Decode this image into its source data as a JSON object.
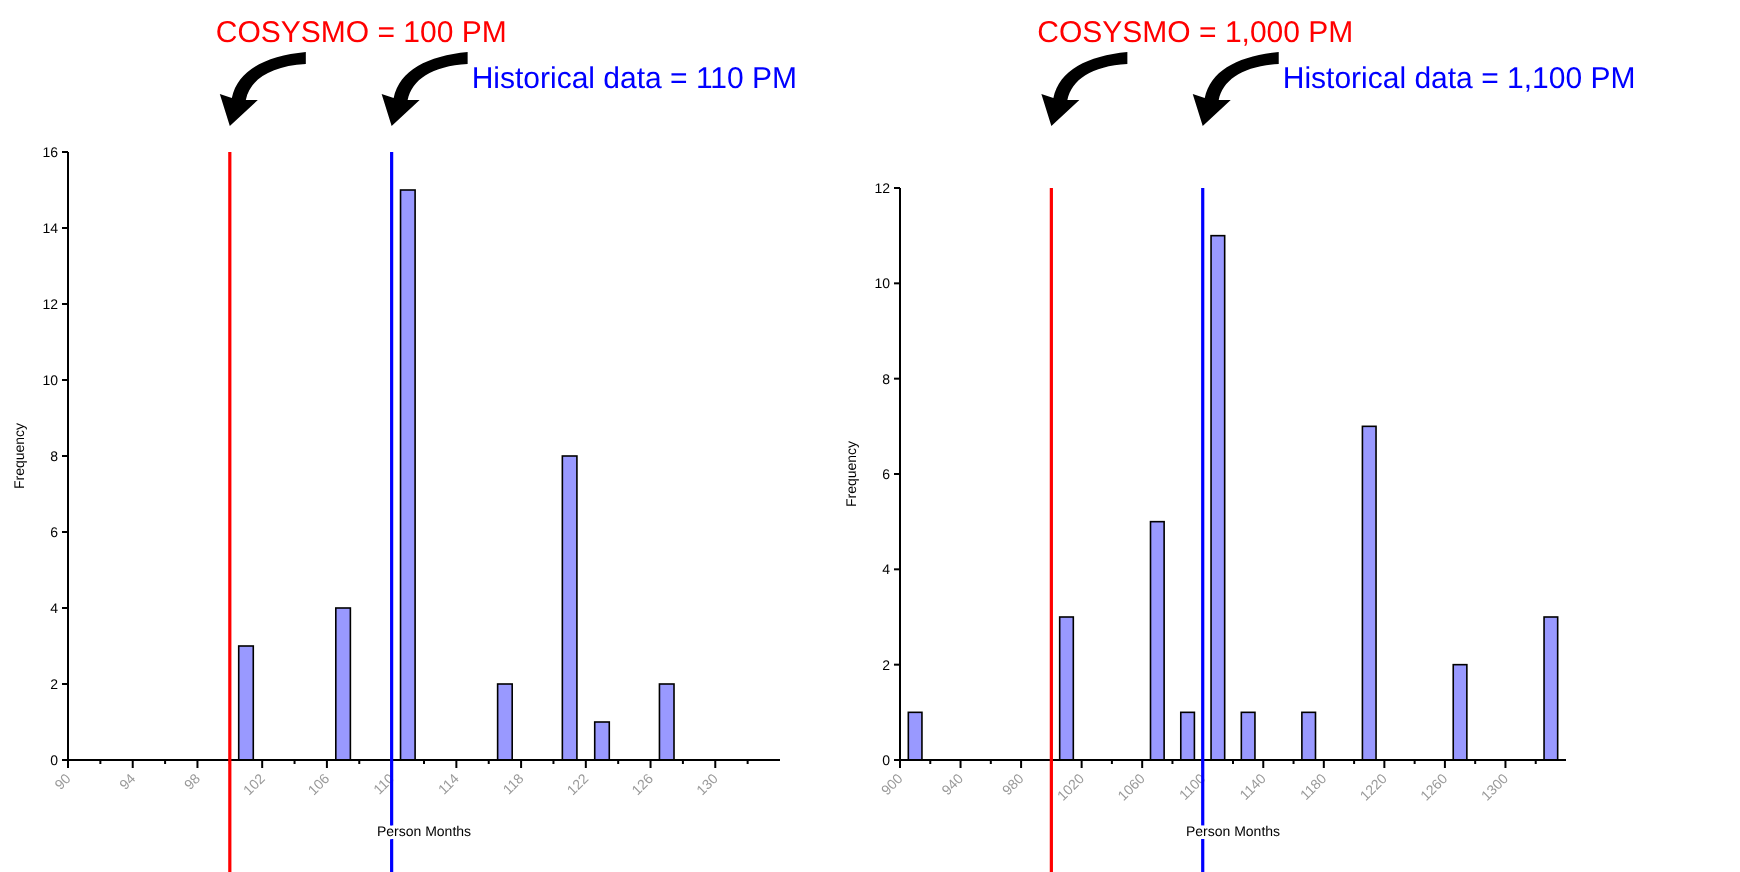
{
  "chart_data": [
    {
      "type": "histogram",
      "xlabel": "Person Months",
      "ylabel": "Frequency",
      "bins": [
        90,
        92,
        94,
        96,
        98,
        100,
        102,
        104,
        106,
        108,
        110,
        112,
        114,
        116,
        118,
        120,
        122,
        124,
        126,
        128,
        130,
        132,
        134
      ],
      "values": [
        0,
        0,
        0,
        0,
        0,
        3,
        0,
        0,
        4,
        0,
        15,
        0,
        0,
        2,
        0,
        8,
        1,
        0,
        2,
        0,
        0,
        0
      ],
      "color": "#9999ff",
      "xlim": [
        90,
        134
      ],
      "xticks": [
        90,
        {
          "value": 92,
          "label": null
        },
        94,
        {
          "value": 96,
          "label": null
        },
        98,
        {
          "value": 100,
          "label": null
        },
        102,
        {
          "value": 104,
          "label": null
        },
        106,
        {
          "value": 108,
          "label": null
        },
        110,
        {
          "value": 112,
          "label": null
        },
        114,
        {
          "value": 116,
          "label": null
        },
        118,
        {
          "value": 120,
          "label": null
        },
        122,
        {
          "value": 124,
          "label": null
        },
        126,
        {
          "value": 128,
          "label": null
        },
        130,
        {
          "value": 132,
          "label": null
        }
      ],
      "ylim": [
        0,
        16
      ],
      "yticks": [
        0,
        2,
        4,
        6,
        8,
        10,
        12,
        14,
        16
      ],
      "grid": false,
      "ref_lines": [
        {
          "axis": "x",
          "value": 100,
          "label": "COSYSMO  = 100 PM",
          "color": "#ff0000"
        },
        {
          "axis": "x",
          "value": 110,
          "label": "Historical data = 110 PM",
          "color": "#0000ff"
        }
      ]
    },
    {
      "type": "histogram",
      "xlabel": "Person Months",
      "ylabel": "Frequency",
      "bins": [
        900,
        920,
        940,
        960,
        980,
        1000,
        1020,
        1040,
        1060,
        1080,
        1100,
        1120,
        1140,
        1160,
        1180,
        1200,
        1220,
        1240,
        1260,
        1280,
        1300,
        1320,
        1340
      ],
      "values": [
        1,
        0,
        0,
        0,
        0,
        3,
        0,
        0,
        5,
        1,
        11,
        1,
        0,
        1,
        0,
        7,
        0,
        0,
        2,
        0,
        0,
        3
      ],
      "color": "#9999ff",
      "xlim": [
        900,
        1340
      ],
      "xticks": [
        900,
        {
          "value": 920,
          "label": null
        },
        940,
        {
          "value": 960,
          "label": null
        },
        980,
        {
          "value": 1000,
          "label": null
        },
        1020,
        {
          "value": 1040,
          "label": null
        },
        1060,
        {
          "value": 1080,
          "label": null
        },
        1100,
        {
          "value": 1120,
          "label": null
        },
        1140,
        {
          "value": 1160,
          "label": null
        },
        1180,
        {
          "value": 1200,
          "label": null
        },
        1220,
        {
          "value": 1240,
          "label": null
        },
        1260,
        {
          "value": 1280,
          "label": null
        },
        1300,
        {
          "value": 1320,
          "label": null
        }
      ],
      "ylim": [
        0,
        12
      ],
      "yticks": [
        0,
        2,
        4,
        6,
        8,
        10,
        12
      ],
      "grid": false,
      "ref_lines": [
        {
          "axis": "x",
          "value": 1000,
          "label": "COSYSMO  = 1,000 PM",
          "color": "#ff0000"
        },
        {
          "axis": "x",
          "value": 1100,
          "label": "Historical data = 1,100 PM",
          "color": "#0000ff"
        }
      ]
    }
  ]
}
